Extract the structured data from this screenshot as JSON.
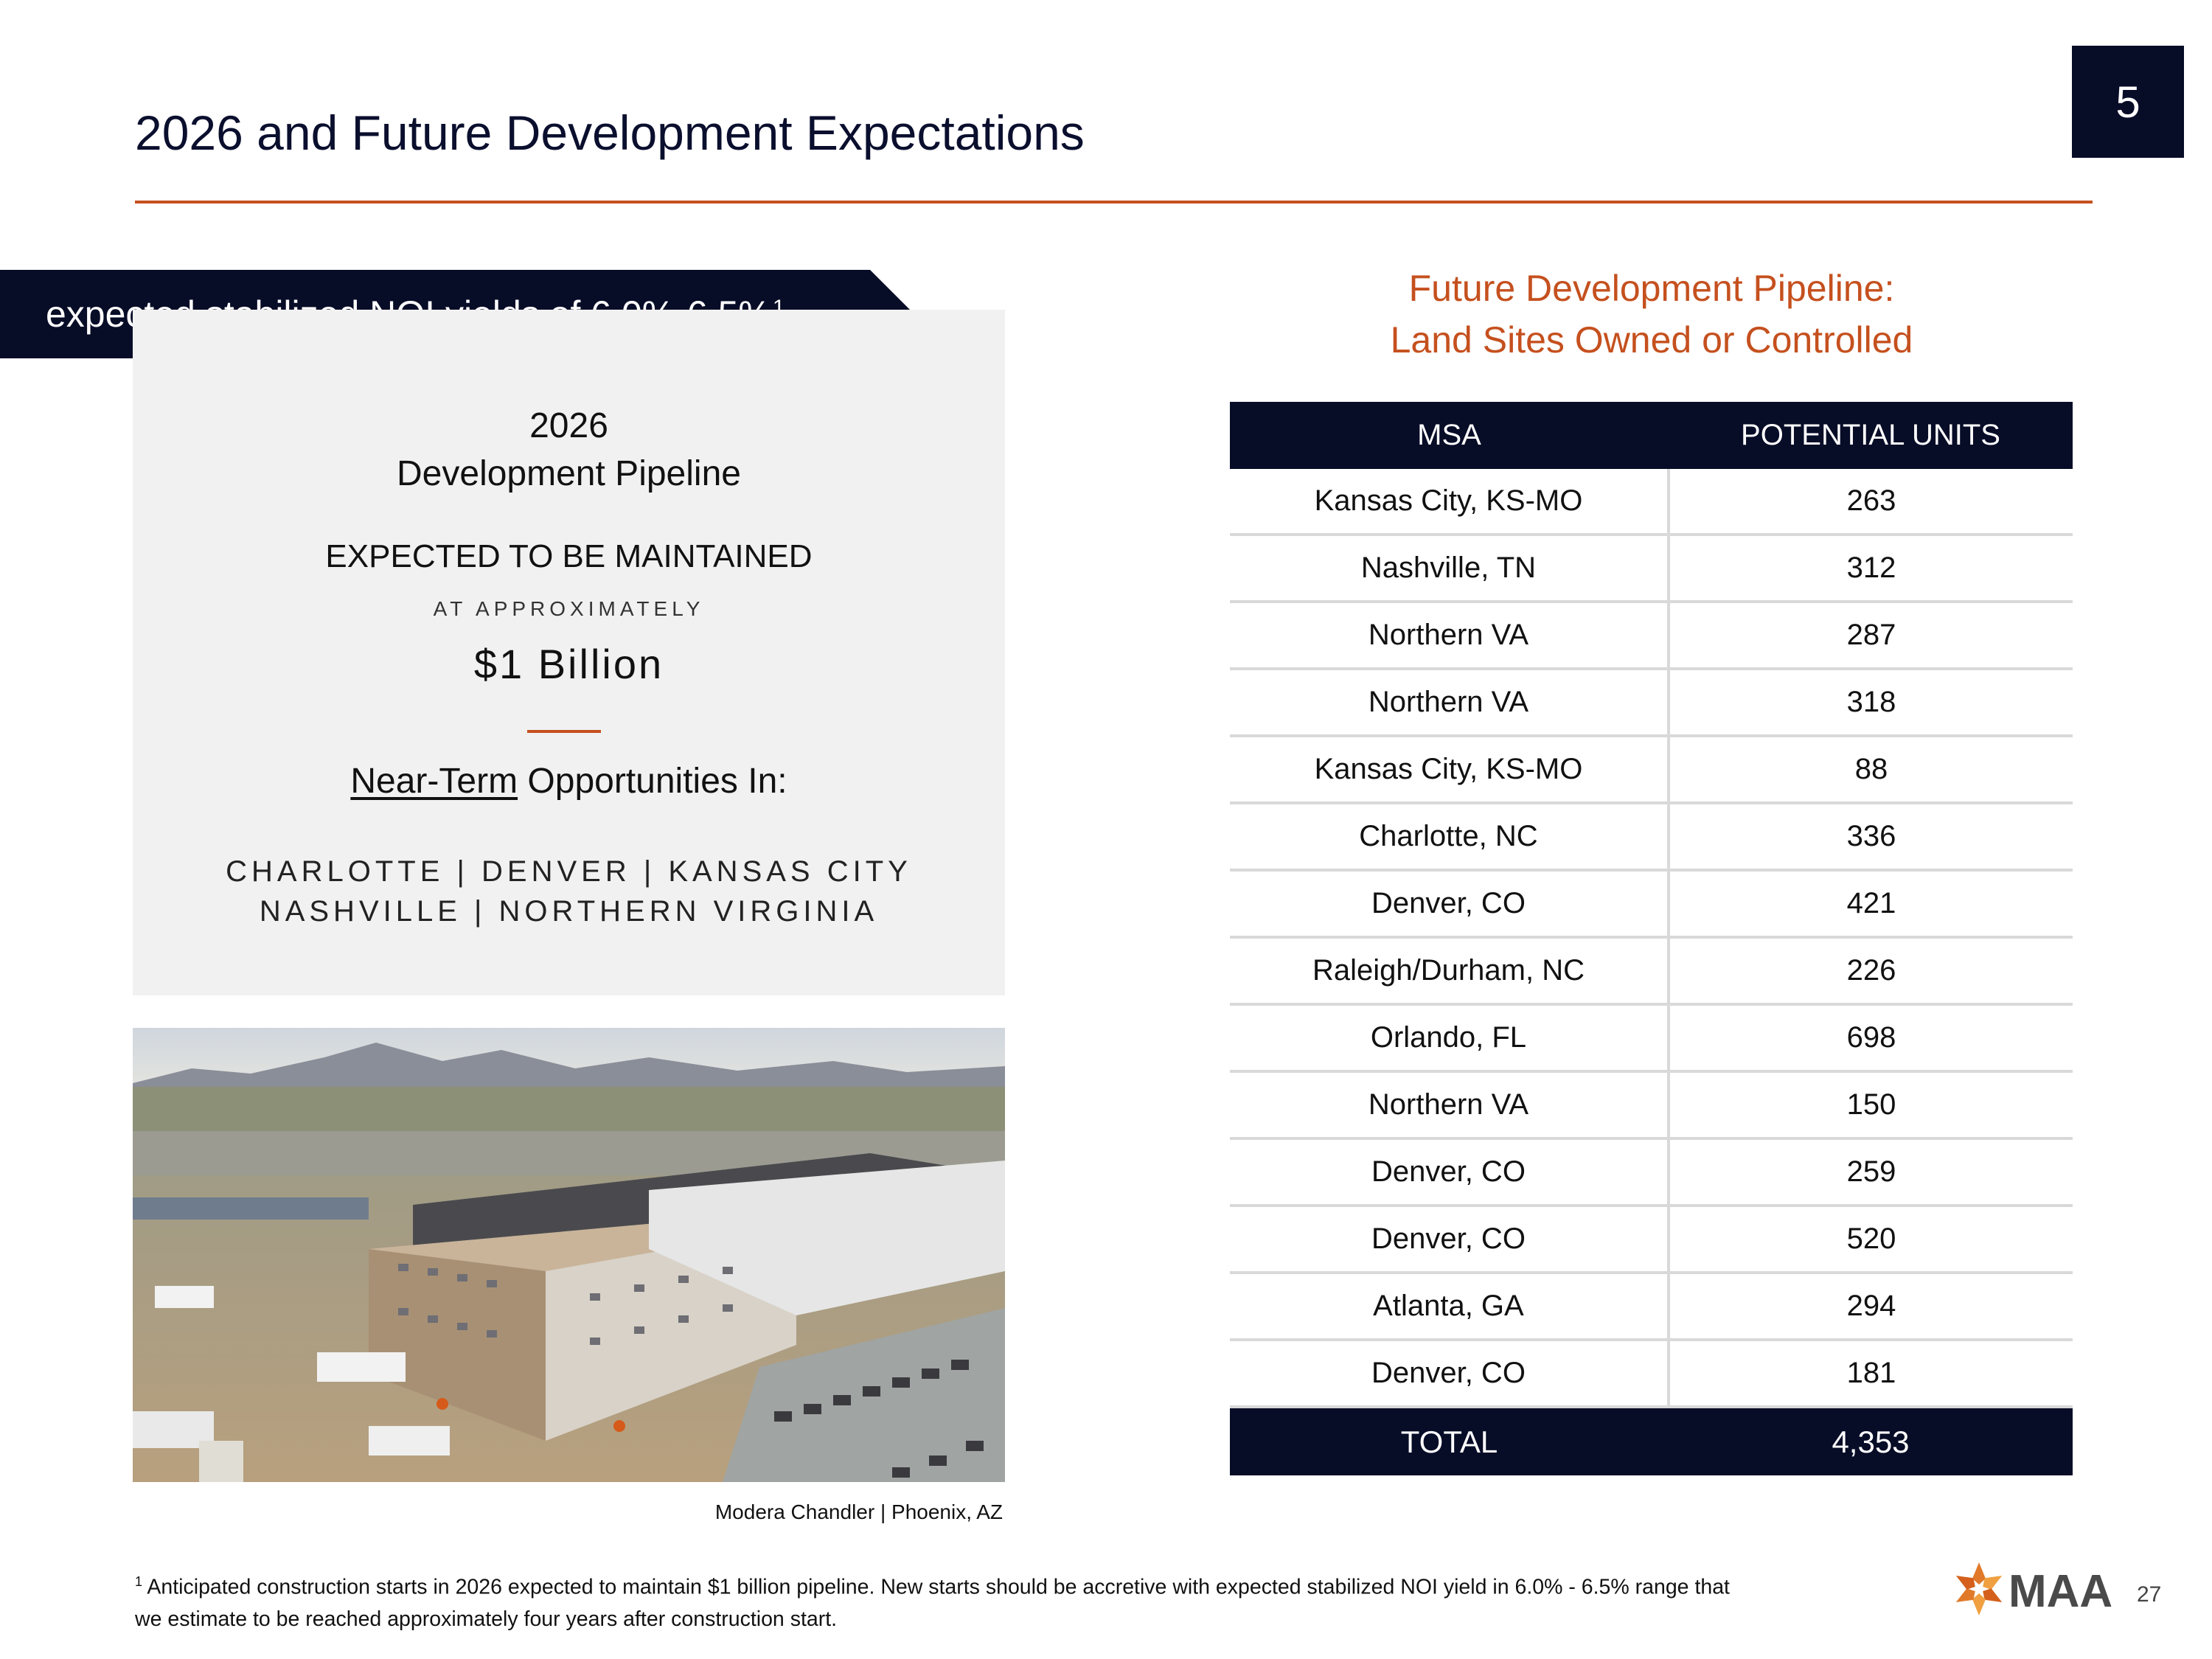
{
  "header": {
    "title": "2026 and Future Development Expectations",
    "section_number": "5"
  },
  "banner": {
    "text": "expected stabilized NOI yields of 6.0%-6.5%",
    "footnote_marker": "1"
  },
  "panel": {
    "year": "2026",
    "pipeline": "Development Pipeline",
    "maintained": "EXPECTED TO BE MAINTAINED",
    "approx": "AT APPROXIMATELY",
    "amount": "$1 Billion",
    "near_term": "Near-Term",
    "opportunities": "Opportunities In:",
    "cities_line1": "CHARLOTTE | DENVER | KANSAS CITY",
    "cities_line2": "NASHVILLE | NORTHERN VIRGINIA"
  },
  "photo": {
    "caption": "Modera Chandler | Phoenix, AZ"
  },
  "future": {
    "title_line1": "Future Development Pipeline:",
    "title_line2": "Land Sites Owned or Controlled"
  },
  "table": {
    "headers": [
      "MSA",
      "POTENTIAL UNITS"
    ],
    "rows": [
      [
        "Kansas City, KS-MO",
        "263"
      ],
      [
        "Nashville, TN",
        "312"
      ],
      [
        "Northern VA",
        "287"
      ],
      [
        "Northern VA",
        "318"
      ],
      [
        "Kansas City, KS-MO",
        "88"
      ],
      [
        "Charlotte, NC",
        "336"
      ],
      [
        "Denver, CO",
        "421"
      ],
      [
        "Raleigh/Durham, NC",
        "226"
      ],
      [
        "Orlando, FL",
        "698"
      ],
      [
        "Northern VA",
        "150"
      ],
      [
        "Denver, CO",
        "259"
      ],
      [
        "Denver, CO",
        "520"
      ],
      [
        "Atlanta, GA",
        "294"
      ],
      [
        "Denver, CO",
        "181"
      ]
    ],
    "total_label": "TOTAL",
    "total_value": "4,353"
  },
  "footnote": {
    "marker": "1",
    "text": "Anticipated construction starts in 2026 expected to maintain $1 billion pipeline.  New starts should be accretive with expected stabilized NOI yield in 6.0% - 6.5% range that",
    "text2": "we estimate to be reached approximately four years after construction start."
  },
  "logo": {
    "text": "MAA"
  },
  "page_number": "27",
  "colors": {
    "navy": "#070c27",
    "accent": "#c5501e",
    "panel": "#f1f1f1"
  }
}
